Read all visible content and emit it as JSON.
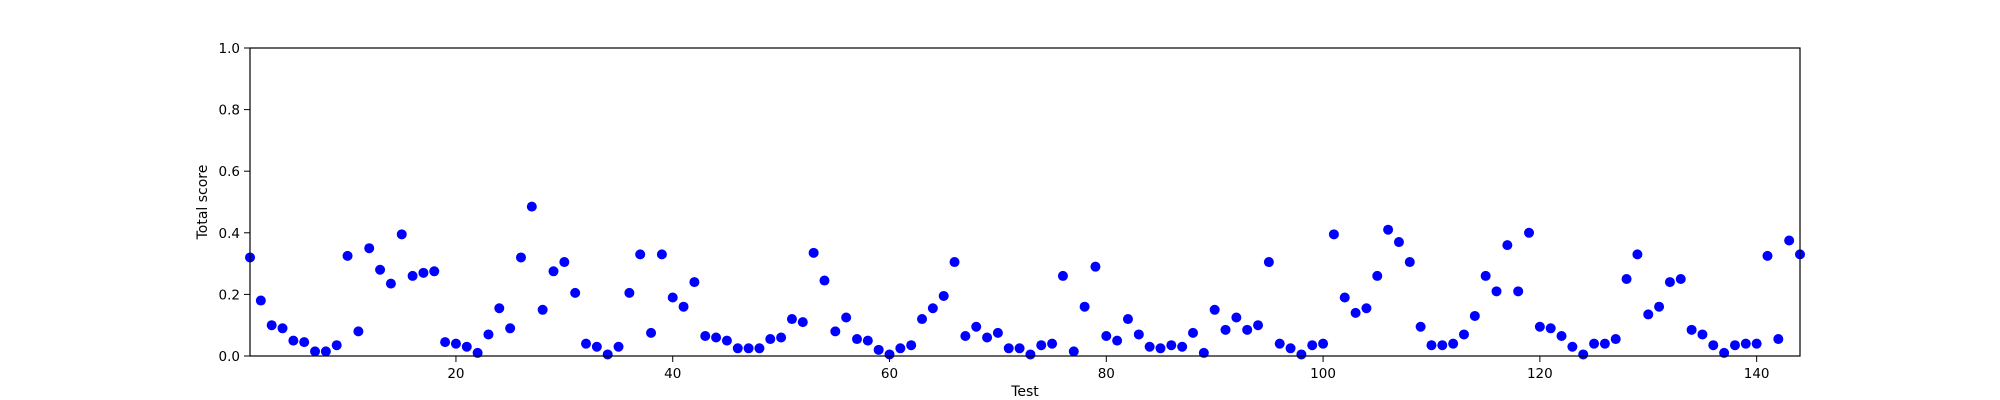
{
  "chart_data": {
    "type": "scatter",
    "title": "",
    "xlabel": "Test",
    "ylabel": "Total score",
    "xlim": [
      1,
      144
    ],
    "ylim": [
      0,
      1.0
    ],
    "x_ticks": [
      20,
      40,
      60,
      80,
      100,
      120,
      140
    ],
    "y_ticks": [
      0.0,
      0.2,
      0.4,
      0.6,
      0.8,
      1.0
    ],
    "x_tick_labels": [
      "20",
      "40",
      "60",
      "80",
      "100",
      "120",
      "140"
    ],
    "y_tick_labels": [
      "0.0",
      "0.2",
      "0.4",
      "0.6",
      "0.8",
      "1.0"
    ],
    "grid": false,
    "marker_color": "#0000ff",
    "series": [
      {
        "x": [
          1,
          2,
          3,
          4,
          5,
          6,
          7,
          8,
          9,
          10,
          11,
          12,
          13,
          14,
          15,
          16,
          17,
          18,
          19,
          20,
          21,
          22,
          23,
          24,
          25,
          26,
          27,
          28,
          29,
          30,
          31,
          32,
          33,
          34,
          35,
          36,
          37,
          38,
          39,
          40,
          41,
          42,
          43,
          44,
          45,
          46,
          47,
          48,
          49,
          50,
          51,
          52,
          53,
          54,
          55,
          56,
          57,
          58,
          59,
          60,
          61,
          62,
          63,
          64,
          65,
          66,
          67,
          68,
          69,
          70,
          71,
          72,
          73,
          74,
          75,
          76,
          77,
          78,
          79,
          80,
          81,
          82,
          83,
          84,
          85,
          86,
          87,
          88,
          89,
          90,
          91,
          92,
          93,
          94,
          95,
          96,
          97,
          98,
          99,
          100,
          101,
          102,
          103,
          104,
          105,
          106,
          107,
          108,
          109,
          110,
          111,
          112,
          113,
          114,
          115,
          116,
          117,
          118,
          119,
          120,
          121,
          122,
          123,
          124,
          125,
          126,
          127,
          128,
          129,
          130,
          131,
          132,
          133,
          134,
          135,
          136,
          137,
          138,
          139,
          140,
          141,
          142,
          143,
          144
        ],
        "y": [
          0.32,
          0.18,
          0.1,
          0.09,
          0.05,
          0.045,
          0.015,
          0.015,
          0.035,
          0.325,
          0.08,
          0.35,
          0.28,
          0.235,
          0.395,
          0.26,
          0.27,
          0.275,
          0.045,
          0.04,
          0.03,
          0.01,
          0.07,
          0.155,
          0.09,
          0.32,
          0.485,
          0.15,
          0.275,
          0.305,
          0.205,
          0.04,
          0.03,
          0.005,
          0.03,
          0.205,
          0.33,
          0.075,
          0.33,
          0.19,
          0.16,
          0.24,
          0.065,
          0.06,
          0.05,
          0.025,
          0.025,
          0.025,
          0.055,
          0.06,
          0.12,
          0.11,
          0.335,
          0.245,
          0.08,
          0.125,
          0.055,
          0.05,
          0.02,
          0.005,
          0.025,
          0.035,
          0.12,
          0.155,
          0.195,
          0.305,
          0.065,
          0.095,
          0.06,
          0.075,
          0.025,
          0.025,
          0.005,
          0.035,
          0.04,
          0.26,
          0.015,
          0.16,
          0.29,
          0.065,
          0.05,
          0.12,
          0.07,
          0.03,
          0.025,
          0.035,
          0.03,
          0.075,
          0.01,
          0.15,
          0.085,
          0.125,
          0.085,
          0.1,
          0.305,
          0.04,
          0.025,
          0.005,
          0.035,
          0.04,
          0.395,
          0.19,
          0.14,
          0.155,
          0.26,
          0.41,
          0.37,
          0.305,
          0.095,
          0.035,
          0.035,
          0.04,
          0.07,
          0.13,
          0.26,
          0.21,
          0.36,
          0.21,
          0.4,
          0.095,
          0.09,
          0.065,
          0.03,
          0.005,
          0.04,
          0.04,
          0.055,
          0.25,
          0.33,
          0.135,
          0.16,
          0.24,
          0.25,
          0.085,
          0.07,
          0.035,
          0.01,
          0.035,
          0.04,
          0.04,
          0.325,
          0.055,
          0.375,
          0.33
        ]
      }
    ]
  }
}
